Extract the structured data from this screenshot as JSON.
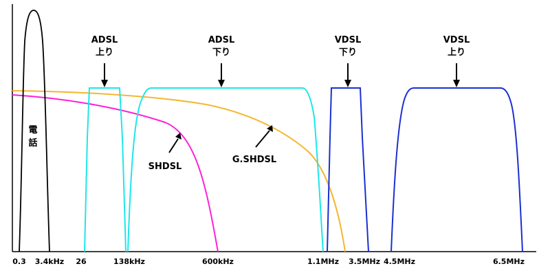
{
  "colors": {
    "phone": "#000000",
    "adsl": "#1ee6ea",
    "vdsl": "#1a2fd0",
    "shdsl": "#ff1fd8",
    "gshdsl": "#f5b731",
    "axis": "#000000"
  },
  "labels": {
    "adsl_up_line1": "ADSL",
    "adsl_up_line2": "上り",
    "adsl_down_line1": "ADSL",
    "adsl_down_line2": "下り",
    "vdsl_down_line1": "VDSL",
    "vdsl_down_line2": "下り",
    "vdsl_up_line1": "VDSL",
    "vdsl_up_line2": "上り",
    "phone_char1": "電",
    "phone_char2": "話",
    "shdsl": "SHDSL",
    "gshdsl": "G.SHDSL"
  },
  "ticks": {
    "t0": "0.3",
    "t1": "3.4kHz",
    "t2": "26",
    "t3": "138kHz",
    "t4": "600kHz",
    "t5": "1.1MHz",
    "t6": "3.5MHz",
    "t7": "4.5MHz",
    "t8": "6.5MHz"
  }
}
